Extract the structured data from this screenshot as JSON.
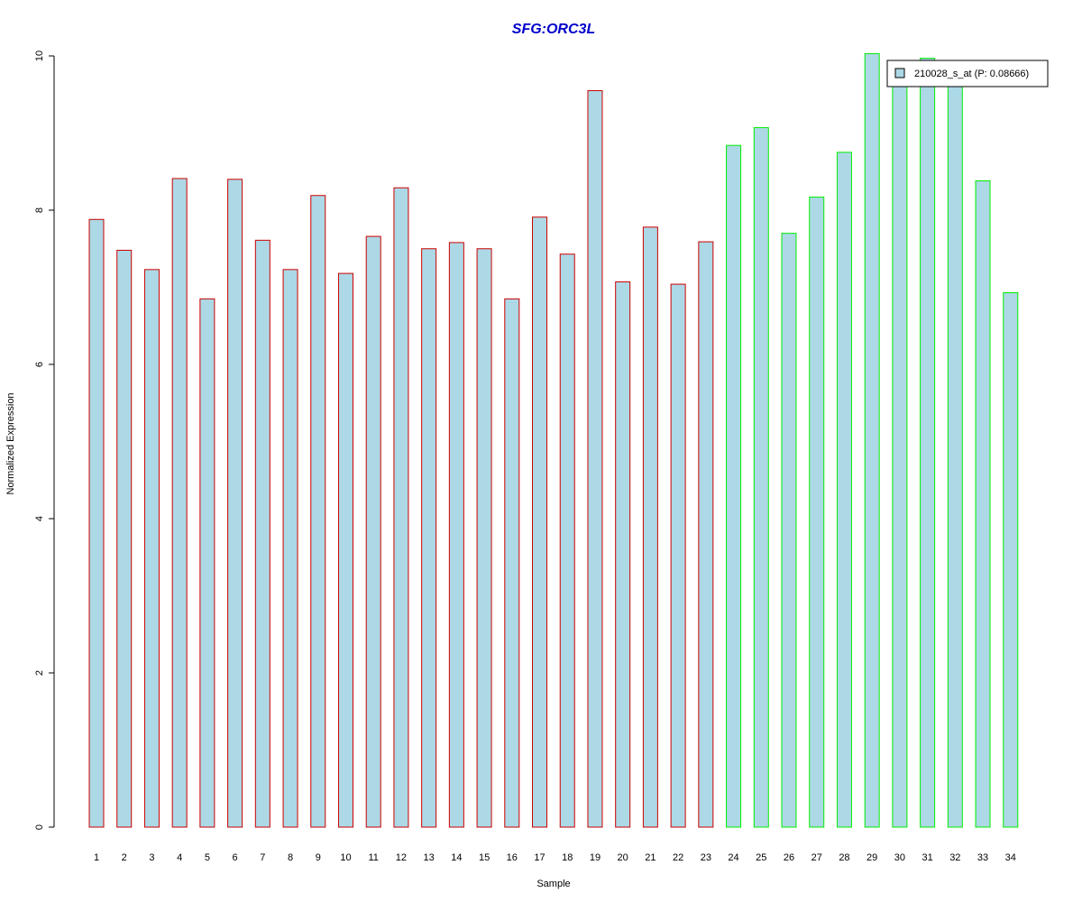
{
  "chart_data": {
    "type": "bar",
    "title": "SFG:ORC3L",
    "xlabel": "Sample",
    "ylabel": "Normalized Expression",
    "ylim": [
      0,
      10
    ],
    "yticks": [
      0,
      2,
      4,
      6,
      8,
      10
    ],
    "categories": [
      "1",
      "2",
      "3",
      "4",
      "5",
      "6",
      "7",
      "8",
      "9",
      "10",
      "11",
      "12",
      "13",
      "14",
      "15",
      "16",
      "17",
      "18",
      "19",
      "20",
      "21",
      "22",
      "23",
      "24",
      "25",
      "26",
      "27",
      "28",
      "29",
      "30",
      "31",
      "32",
      "33",
      "34"
    ],
    "series": [
      {
        "name": "210028_s_at (P: 0.08666)",
        "values": [
          7.88,
          7.48,
          7.23,
          8.41,
          6.85,
          8.4,
          7.61,
          7.23,
          8.19,
          7.18,
          7.66,
          8.29,
          7.5,
          7.58,
          7.5,
          6.85,
          7.91,
          7.43,
          9.55,
          7.07,
          7.78,
          7.04,
          7.59,
          8.84,
          9.07,
          7.7,
          8.17,
          8.75,
          10.03,
          9.7,
          9.97,
          9.7,
          8.38,
          6.93
        ],
        "fill": "#add8e6"
      }
    ],
    "groups": [
      {
        "from": 1,
        "to": 23,
        "border": "#cc0000"
      },
      {
        "from": 24,
        "to": 34,
        "border": "#00ee00"
      }
    ],
    "title_color": "#0000cc",
    "legend_position": "top-right",
    "grid": false
  }
}
